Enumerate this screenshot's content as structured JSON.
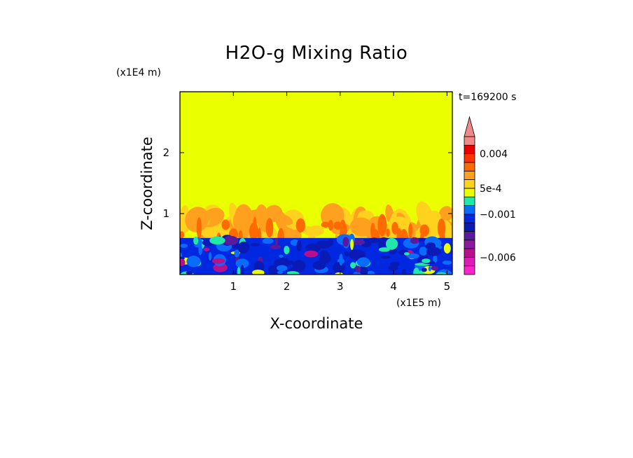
{
  "chart_data": {
    "type": "heatmap",
    "title": "H2O-g Mixing Ratio",
    "xlabel": "X-coordinate",
    "ylabel": "Z-coordinate",
    "x_unit": "(x1E5 m)",
    "y_unit": "(x1E4 m)",
    "time_label": "t=169200 s",
    "xlim": [
      0,
      5.1
    ],
    "ylim": [
      0,
      3
    ],
    "x_ticks": [
      "1",
      "2",
      "3",
      "4",
      "5"
    ],
    "y_ticks": [
      "1",
      "2"
    ],
    "colorbar": {
      "levels": [
        -0.008,
        -0.007,
        -0.006,
        -0.005,
        -0.004,
        -0.003,
        -0.002,
        -0.001,
        -0.0005,
        0,
        0.0005,
        0.001,
        0.002,
        0.003,
        0.004,
        0.005,
        0.006
      ],
      "colors": [
        "#ff22cc",
        "#e01ab8",
        "#b8108c",
        "#8a1a9e",
        "#5a1a9e",
        "#0a1ab4",
        "#0028e0",
        "#0a6cff",
        "#22e6aa",
        "#eaff00",
        "#ffd21e",
        "#ffa01e",
        "#ff6a00",
        "#ff3200",
        "#e80000",
        "#f08a8a"
      ],
      "extend": "max",
      "tick_labels": [
        {
          "value": 0.004,
          "label": "0.004"
        },
        {
          "value": 0.0005,
          "label": "5e-4"
        },
        {
          "value": -0.001,
          "label": "-0.001"
        },
        {
          "value": -0.006,
          "label": "-0.006"
        }
      ]
    },
    "field_summary": {
      "upper_layer": {
        "z_range": [
          1.05,
          3
        ],
        "value": 0
      },
      "mixed_layer": {
        "z_range": [
          0.6,
          1.05
        ],
        "values": [
          0.0005,
          0.001,
          0.002
        ]
      },
      "lower_layer": {
        "z_range": [
          0,
          0.6
        ],
        "values": [
          -0.003,
          -0.002,
          -0.001,
          -0.0005
        ]
      }
    }
  }
}
